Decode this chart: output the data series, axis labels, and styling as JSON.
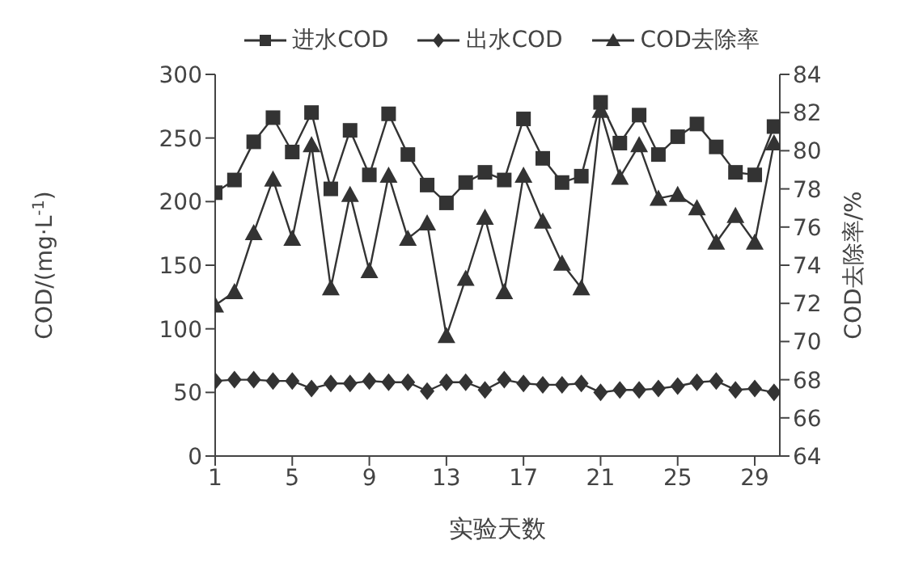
{
  "chart_data": {
    "type": "line",
    "xlabel": "实验天数",
    "ylabel": "COD/(mg·L$^{-1}$)",
    "y2label": "COD去除率/%",
    "x": [
      1,
      2,
      3,
      4,
      5,
      6,
      7,
      8,
      9,
      10,
      11,
      12,
      13,
      14,
      15,
      16,
      17,
      18,
      19,
      20,
      21,
      22,
      23,
      24,
      25,
      26,
      27,
      28,
      29,
      30
    ],
    "xlim": [
      1,
      30.3
    ],
    "xticks": [
      1,
      5,
      9,
      13,
      17,
      21,
      25,
      29
    ],
    "ylim": [
      0,
      300
    ],
    "yticks": [
      0,
      50,
      100,
      150,
      200,
      250,
      300
    ],
    "y2lim": [
      64,
      84
    ],
    "y2ticks": [
      64,
      66,
      68,
      70,
      72,
      74,
      76,
      78,
      80,
      82,
      84
    ],
    "legend": "top",
    "grid": false,
    "series": [
      {
        "name": "进水COD",
        "color": "#333333",
        "marker": "square",
        "values": [
          207,
          217,
          247,
          266,
          239,
          270,
          210,
          256,
          221,
          269,
          237,
          213,
          199,
          215,
          223,
          217,
          265,
          234,
          215,
          220,
          278,
          246,
          268,
          237,
          251,
          261,
          243,
          223,
          221,
          259
        ]
      },
      {
        "name": "出水COD",
        "color": "#333333",
        "marker": "diamond",
        "values": [
          59,
          60,
          60,
          59,
          59,
          53,
          57,
          57,
          59,
          58,
          58,
          51,
          58,
          58,
          52,
          60,
          57,
          56,
          56,
          57,
          50,
          52,
          52,
          53,
          55,
          58,
          59,
          52,
          53,
          50
        ]
      },
      {
        "name": "COD去除率",
        "color": "#333333",
        "marker": "triangle",
        "axis": "y2",
        "values": [
          71.9,
          72.6,
          75.7,
          78.5,
          75.4,
          80.3,
          72.8,
          77.7,
          73.7,
          78.7,
          75.4,
          76.2,
          70.3,
          73.3,
          76.5,
          72.6,
          78.7,
          76.3,
          74.1,
          72.8,
          82.1,
          78.6,
          80.3,
          77.5,
          77.7,
          77.0,
          75.2,
          76.6,
          75.2,
          80.4
        ]
      }
    ]
  }
}
